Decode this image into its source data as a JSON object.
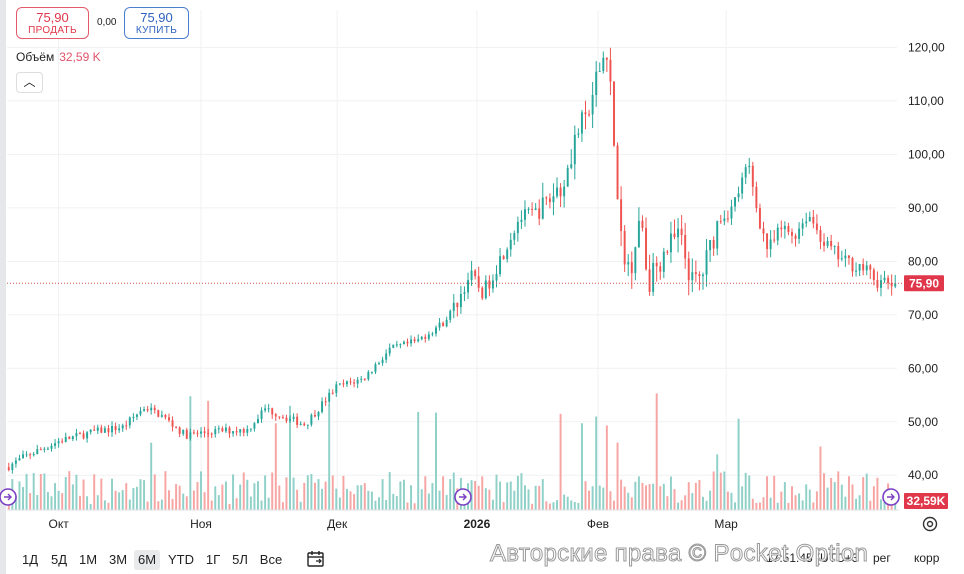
{
  "header": {
    "sell_price": "75,90",
    "sell_label": "ПРОДАТЬ",
    "spread": "0,00",
    "buy_price": "75,90",
    "buy_label": "КУПИТЬ",
    "volume_label": "Объём",
    "volume_value": "32,59 K"
  },
  "chart_data": {
    "type": "candlestick",
    "y_axis": {
      "min": 33.5,
      "max": 127,
      "ticks": [
        40,
        50,
        60,
        70,
        80,
        90,
        100,
        110,
        120
      ],
      "tick_labels": [
        "40,00",
        "50,00",
        "60,00",
        "70,00",
        "80,00",
        "90,00",
        "100,00",
        "110,00",
        "120,00"
      ]
    },
    "x_axis": {
      "labels": [
        "Окт",
        "Ноя",
        "Дек",
        "2026",
        "Фев",
        "Мар"
      ],
      "label_positions": [
        0.058,
        0.218,
        0.371,
        0.528,
        0.664,
        0.808
      ]
    },
    "price_anchors": [
      [
        0.0,
        41.5
      ],
      [
        0.02,
        43.5
      ],
      [
        0.06,
        46.5
      ],
      [
        0.1,
        48.2
      ],
      [
        0.13,
        49.0
      ],
      [
        0.155,
        52.8
      ],
      [
        0.175,
        51.0
      ],
      [
        0.2,
        47.5
      ],
      [
        0.24,
        48.3
      ],
      [
        0.27,
        48.5
      ],
      [
        0.29,
        52.5
      ],
      [
        0.31,
        51.0
      ],
      [
        0.335,
        49.5
      ],
      [
        0.37,
        56.5
      ],
      [
        0.4,
        58.0
      ],
      [
        0.43,
        63.5
      ],
      [
        0.46,
        65.0
      ],
      [
        0.49,
        68.5
      ],
      [
        0.505,
        72.0
      ],
      [
        0.52,
        77.5
      ],
      [
        0.535,
        74.0
      ],
      [
        0.55,
        79.0
      ],
      [
        0.575,
        88.0
      ],
      [
        0.6,
        89.5
      ],
      [
        0.625,
        95.0
      ],
      [
        0.64,
        104.0
      ],
      [
        0.655,
        108.0
      ],
      [
        0.667,
        117.0
      ],
      [
        0.675,
        120.0
      ],
      [
        0.68,
        108.0
      ],
      [
        0.688,
        85.0
      ],
      [
        0.7,
        78.0
      ],
      [
        0.712,
        90.0
      ],
      [
        0.72,
        76.0
      ],
      [
        0.74,
        82.0
      ],
      [
        0.755,
        85.0
      ],
      [
        0.77,
        76.0
      ],
      [
        0.78,
        77.0
      ],
      [
        0.8,
        88.0
      ],
      [
        0.815,
        90.0
      ],
      [
        0.833,
        98.0
      ],
      [
        0.845,
        88.0
      ],
      [
        0.855,
        82.0
      ],
      [
        0.87,
        86.0
      ],
      [
        0.885,
        85.0
      ],
      [
        0.9,
        89.0
      ],
      [
        0.92,
        83.0
      ],
      [
        0.94,
        80.0
      ],
      [
        0.96,
        79.0
      ],
      [
        0.98,
        75.9
      ]
    ],
    "last_price": 75.9,
    "last_price_label": "75,90",
    "volume_last_label": "32,59K",
    "colors": {
      "up": "#26a69a",
      "down": "#ef5350",
      "vol_up": "#8fd0c8",
      "vol_down": "#f6a5a3",
      "price_line": "#d9534f",
      "grid": "#f0f1f3",
      "axis_text": "#222222"
    }
  },
  "timeframes": [
    "1Д",
    "5Д",
    "1М",
    "3М",
    "6М",
    "YTD",
    "1Г",
    "5Л",
    "Все"
  ],
  "active_timeframe": "6М",
  "footer": {
    "watermark": "Авторские права © Pocket Option",
    "clock": "17:51:45 (UTC+3",
    "percent": "рег",
    "correction": "корр"
  }
}
